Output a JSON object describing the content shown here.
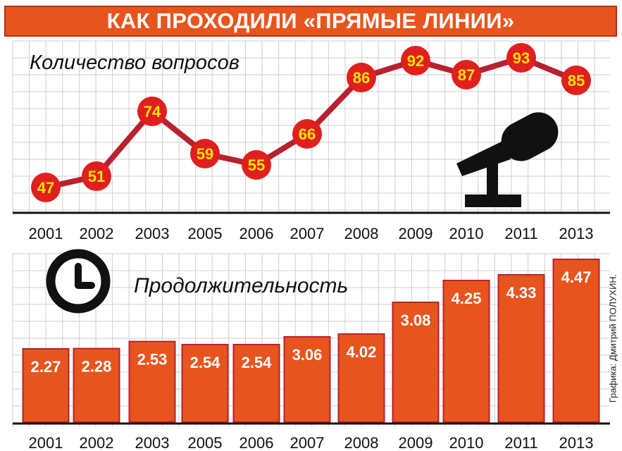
{
  "header": {
    "title": "КАК ПРОХОДИЛИ «ПРЯМЫЕ ЛИНИИ»"
  },
  "credit": "Графика: Дмитрий ПОЛУХИН.",
  "colors": {
    "accent": "#e8541e",
    "dark_red": "#b8212f",
    "marker": "#e0201e",
    "marker_label": "#ffe400",
    "grid": "#cfcfcf",
    "icon": "#111111"
  },
  "icons": {
    "top": "microphone-icon",
    "bottom": "clock-icon"
  },
  "chart_data": [
    {
      "type": "line",
      "title": "Количество вопросов",
      "categories": [
        "2001",
        "2002",
        "2003",
        "2005",
        "2006",
        "2007",
        "2008",
        "2009",
        "2010",
        "2011",
        "2013"
      ],
      "values": [
        47,
        51,
        74,
        59,
        55,
        66,
        86,
        92,
        87,
        93,
        85
      ],
      "grid": true
    },
    {
      "type": "bar",
      "title": "Продолжительность",
      "categories": [
        "2001",
        "2002",
        "2003",
        "2005",
        "2006",
        "2007",
        "2008",
        "2009",
        "2010",
        "2011",
        "2013"
      ],
      "values": [
        "2.27",
        "2.28",
        "2.53",
        "2.54",
        "2.54",
        "3.06",
        "4.02",
        "3.08",
        "4.25",
        "4.33",
        "4.47"
      ],
      "grid": true
    }
  ]
}
